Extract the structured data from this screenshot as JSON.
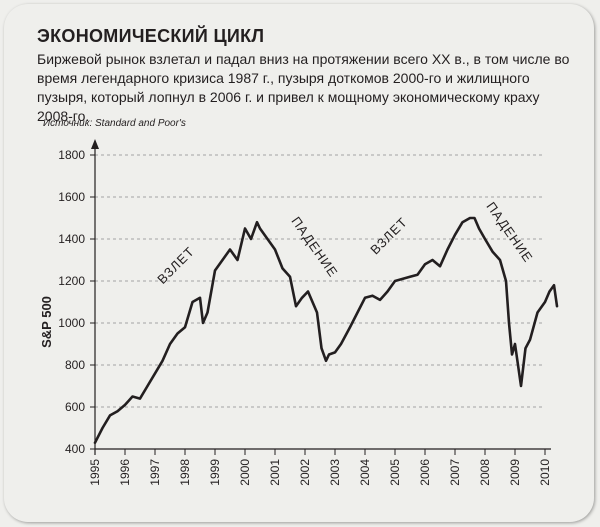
{
  "header": {
    "title": "ЭКОНОМИЧЕСКИЙ ЦИКЛ",
    "subtitle": "Биржевой рынок взлетал и падал вниз на протяжении всего XX в., в том числе во время легендарного кризиса 1987 г., пузыря доткомов 2000-го и жилищного пузыря, который лопнул в 2006 г. и привел к мощному экономическому краху 2008-го.",
    "source": "Источник: Standard and Poor's"
  },
  "chart_data": {
    "type": "line",
    "title": "ЭКОНОМИЧЕСКИЙ ЦИКЛ",
    "xlabel": "",
    "ylabel": "S&P 500",
    "xlim": [
      1995,
      2010
    ],
    "ylim": [
      400,
      1800
    ],
    "x_ticks": [
      "1995",
      "1996",
      "1997",
      "1998",
      "1999",
      "2000",
      "2001",
      "2002",
      "2003",
      "2004",
      "2005",
      "2006",
      "2007",
      "2008",
      "2009",
      "2010"
    ],
    "y_ticks": [
      "400",
      "600",
      "800",
      "1000",
      "1200",
      "1400",
      "1600",
      "1800"
    ],
    "grid": "horizontal dashed",
    "series": [
      {
        "name": "S&P 500",
        "x": [
          1995.0,
          1995.25,
          1995.5,
          1995.75,
          1996.0,
          1996.25,
          1996.5,
          1996.75,
          1997.0,
          1997.25,
          1997.5,
          1997.75,
          1998.0,
          1998.25,
          1998.5,
          1998.6,
          1998.75,
          1999.0,
          1999.25,
          1999.5,
          1999.75,
          2000.0,
          2000.2,
          2000.4,
          2000.5,
          2000.75,
          2001.0,
          2001.25,
          2001.5,
          2001.7,
          2001.9,
          2002.1,
          2002.4,
          2002.55,
          2002.7,
          2002.8,
          2003.0,
          2003.2,
          2003.5,
          2003.75,
          2004.0,
          2004.25,
          2004.5,
          2004.75,
          2005.0,
          2005.5,
          2005.75,
          2006.0,
          2006.25,
          2006.5,
          2006.75,
          2007.0,
          2007.25,
          2007.5,
          2007.65,
          2007.8,
          2008.0,
          2008.25,
          2008.5,
          2008.7,
          2008.8,
          2008.9,
          2009.0,
          2009.1,
          2009.2,
          2009.35,
          2009.5,
          2009.75,
          2010.0,
          2010.15,
          2010.3,
          2010.4
        ],
        "values": [
          430,
          500,
          560,
          580,
          610,
          650,
          640,
          700,
          760,
          820,
          900,
          950,
          980,
          1100,
          1120,
          1000,
          1050,
          1250,
          1300,
          1350,
          1300,
          1450,
          1400,
          1480,
          1450,
          1400,
          1350,
          1260,
          1220,
          1080,
          1120,
          1150,
          1050,
          880,
          820,
          850,
          860,
          900,
          980,
          1050,
          1120,
          1130,
          1110,
          1150,
          1200,
          1220,
          1230,
          1280,
          1300,
          1270,
          1350,
          1420,
          1480,
          1500,
          1500,
          1450,
          1400,
          1340,
          1300,
          1200,
          1000,
          850,
          900,
          800,
          700,
          880,
          920,
          1050,
          1100,
          1150,
          1180,
          1080
        ]
      }
    ],
    "annotations": [
      {
        "text": "ВЗЛЕТ",
        "x": 1997.8,
        "y": 1260
      },
      {
        "text": "ПАДЕНИЕ",
        "x": 2002.2,
        "y": 1350
      },
      {
        "text": "ВЗЛЕТ",
        "x": 2004.9,
        "y": 1400
      },
      {
        "text": "ПАДЕНИЕ",
        "x": 2008.7,
        "y": 1420
      }
    ],
    "colors": {
      "line": "#231f20",
      "grid": "#8a8a8a",
      "background": "#efefec"
    }
  }
}
